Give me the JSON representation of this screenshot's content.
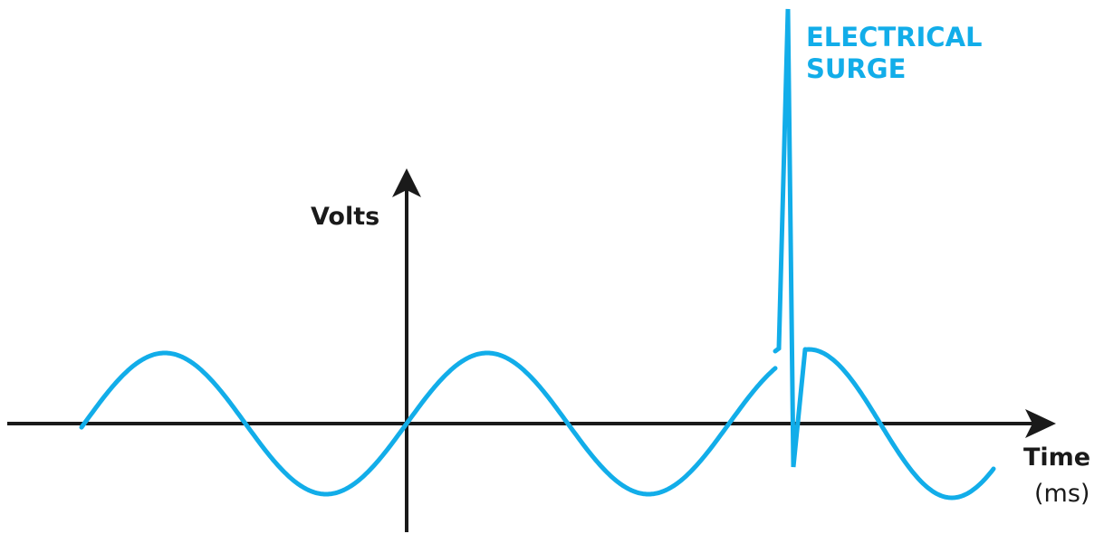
{
  "y_axis_label": "Volts",
  "x_axis_label": "Time",
  "x_axis_unit": "(ms)",
  "annotation": {
    "line1": "ELECTRICAL",
    "line2": "SURGE"
  },
  "colors": {
    "wave": "#12ade9",
    "axes": "#1a1a1a",
    "annotation": "#12ade9",
    "labels": "#1a1a1a"
  }
}
